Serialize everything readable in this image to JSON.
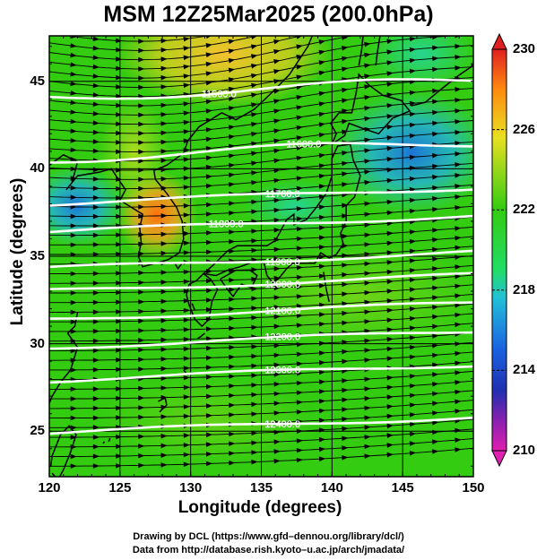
{
  "title": "MSM 12Z25Mar2025 (200.0hPa)",
  "chart_data": {
    "type": "heatmap",
    "xlabel": "Longitude (degrees)",
    "ylabel": "Latitude  (degrees)",
    "xlim": [
      120,
      150
    ],
    "ylim": [
      22.4,
      47.6
    ],
    "x_ticks": [
      "120",
      "125",
      "130",
      "135",
      "140",
      "145",
      "150"
    ],
    "y_ticks": [
      "25",
      "30",
      "35",
      "40",
      "45"
    ],
    "colorbar": {
      "range": [
        210,
        230
      ],
      "tick_labels": [
        "230",
        "226",
        "222",
        "218",
        "214",
        "210"
      ],
      "tick_values": [
        230,
        226,
        222,
        218,
        214,
        210
      ]
    },
    "contours": [
      {
        "label": "11560.0",
        "lat": 44.1
      },
      {
        "label": "11680.0",
        "lat": 40.6
      },
      {
        "label": "11760.0",
        "lat": 38.0
      },
      {
        "label": "11800.0",
        "lat": 36.4
      },
      {
        "label": "11900.0",
        "lat": 34.3
      },
      {
        "label": "12000.0",
        "lat": 33.0
      },
      {
        "label": "12100.0",
        "lat": 31.4
      },
      {
        "label": "12200.0",
        "lat": 29.8
      },
      {
        "label": "12300.0",
        "lat": 27.9
      },
      {
        "label": "12400.0",
        "lat": 24.9
      }
    ]
  },
  "credits": {
    "line1": "Drawing by DCL (https://www.gfd–dennou.org/library/dcl/)",
    "line2": "Data from http://database.rish.kyoto–u.ac.jp/arch/jmadata/"
  },
  "colors": {
    "field_main": "#33cc11",
    "field_warm": "#f0d020",
    "field_hot": "#ff8a10",
    "field_cool": "#22b0e8",
    "contour": "#ffffff",
    "arrows": "#000000"
  }
}
